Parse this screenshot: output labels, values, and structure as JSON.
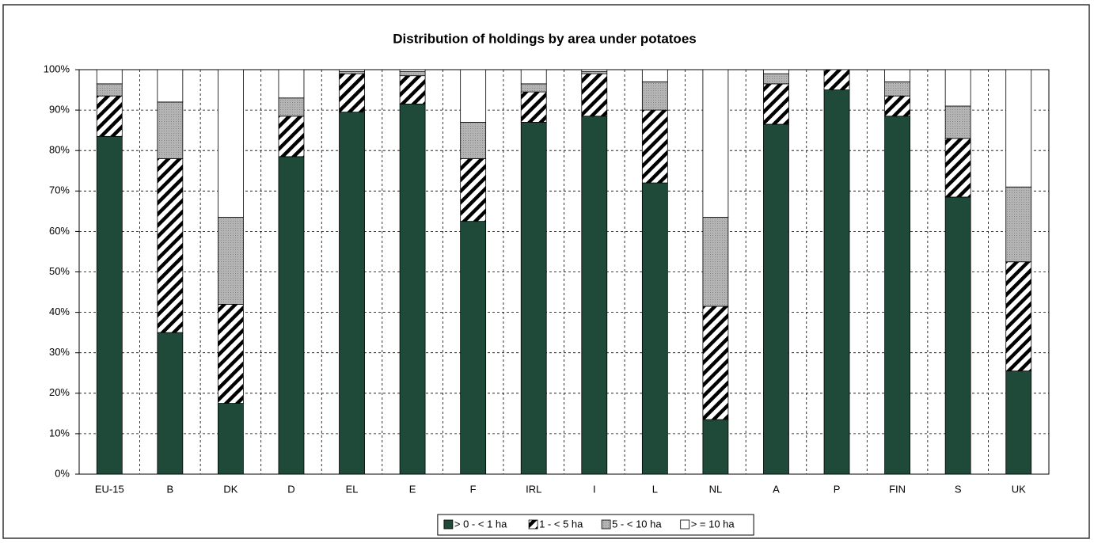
{
  "chart_data": {
    "type": "stacked_bar",
    "title": "Distribution of holdings by area under potatoes",
    "categories": [
      "EU-15",
      "B",
      "DK",
      "D",
      "EL",
      "E",
      "F",
      "IRL",
      "I",
      "L",
      "NL",
      "A",
      "P",
      "FIN",
      "S",
      "UK"
    ],
    "series": [
      {
        "name": "> 0 - < 1 ha",
        "color": "#1f4a3a",
        "pattern": "solid",
        "values": [
          83.5,
          35,
          17.5,
          78.5,
          89.5,
          91.5,
          62.5,
          87,
          88.5,
          72,
          13.5,
          86.5,
          95,
          88.5,
          68.5,
          25.5
        ]
      },
      {
        "name": "1 - < 5 ha",
        "color": "#000000",
        "pattern": "hatch",
        "values": [
          10,
          43,
          24.5,
          10,
          9.5,
          7,
          15.5,
          7.5,
          10.5,
          18,
          28,
          10,
          5,
          5,
          14.5,
          27
        ]
      },
      {
        "name": "5 - < 10 ha",
        "color": "#b4b4b4",
        "pattern": "dots",
        "values": [
          3,
          14,
          21.5,
          4.5,
          0.5,
          1,
          9,
          2,
          0.5,
          7,
          22,
          2.5,
          0,
          3.5,
          8,
          18.5
        ]
      },
      {
        "name": "> = 10 ha",
        "color": "#ffffff",
        "pattern": "solid",
        "values": [
          3.5,
          8,
          36.5,
          7,
          0.5,
          0.5,
          13,
          3.5,
          0.5,
          3,
          36.5,
          1,
          0,
          3,
          9,
          29
        ]
      }
    ],
    "ylim": [
      0,
      100
    ],
    "yticks": [
      {
        "value": 0,
        "label": "0%"
      },
      {
        "value": 10,
        "label": "10%"
      },
      {
        "value": 20,
        "label": "20%"
      },
      {
        "value": 30,
        "label": "30%"
      },
      {
        "value": 40,
        "label": "40%"
      },
      {
        "value": 50,
        "label": "50%"
      },
      {
        "value": 60,
        "label": "60%"
      },
      {
        "value": 70,
        "label": "70%"
      },
      {
        "value": 80,
        "label": "80%"
      },
      {
        "value": 90,
        "label": "90%"
      },
      {
        "value": 100,
        "label": "100%"
      }
    ],
    "grid": true,
    "legend": "bottom"
  }
}
